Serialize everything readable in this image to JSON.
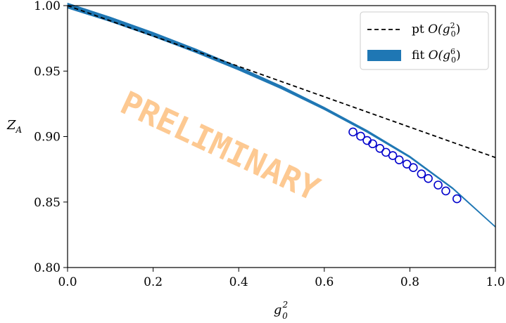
{
  "chart_data": {
    "type": "line",
    "xlabel": "g_0^2",
    "ylabel": "Z_A",
    "xlim": [
      0.0,
      1.0
    ],
    "ylim": [
      0.8,
      1.0
    ],
    "x_ticks": [
      "0.0",
      "0.2",
      "0.4",
      "0.6",
      "0.8",
      "1.0"
    ],
    "y_ticks": [
      "0.80",
      "0.85",
      "0.90",
      "0.95",
      "1.00"
    ],
    "grid": false,
    "legend_position": "top-right",
    "watermark": "PRELIMINARY",
    "series": [
      {
        "name": "pt O(g_0^2)",
        "style": "dashed",
        "color": "#000000",
        "x": [
          0.0,
          1.0
        ],
        "y": [
          1.0,
          0.884
        ]
      },
      {
        "name": "fit O(g_0^6)",
        "style": "band",
        "color": "#1f77b4",
        "x": [
          0.0,
          0.1,
          0.2,
          0.3,
          0.4,
          0.5,
          0.6,
          0.7,
          0.8,
          0.9,
          1.0
        ],
        "y": [
          1.0,
          0.9895,
          0.978,
          0.9655,
          0.952,
          0.9375,
          0.9215,
          0.904,
          0.8845,
          0.8605,
          0.831
        ]
      },
      {
        "name": "",
        "style": "markers",
        "color": "#0000cc",
        "x": [
          0.667,
          0.685,
          0.7,
          0.713,
          0.73,
          0.744,
          0.76,
          0.775,
          0.793,
          0.808,
          0.827,
          0.843,
          0.866,
          0.884,
          0.91
        ],
        "y": [
          0.9035,
          0.9003,
          0.897,
          0.8945,
          0.891,
          0.888,
          0.8855,
          0.8822,
          0.879,
          0.8763,
          0.8715,
          0.868,
          0.863,
          0.8585,
          0.8525
        ]
      }
    ],
    "legend": {
      "items": [
        {
          "prefix": "pt ",
          "label": "O(g_0^2)"
        },
        {
          "prefix": "fit ",
          "label": "O(g_0^6)"
        }
      ]
    }
  }
}
